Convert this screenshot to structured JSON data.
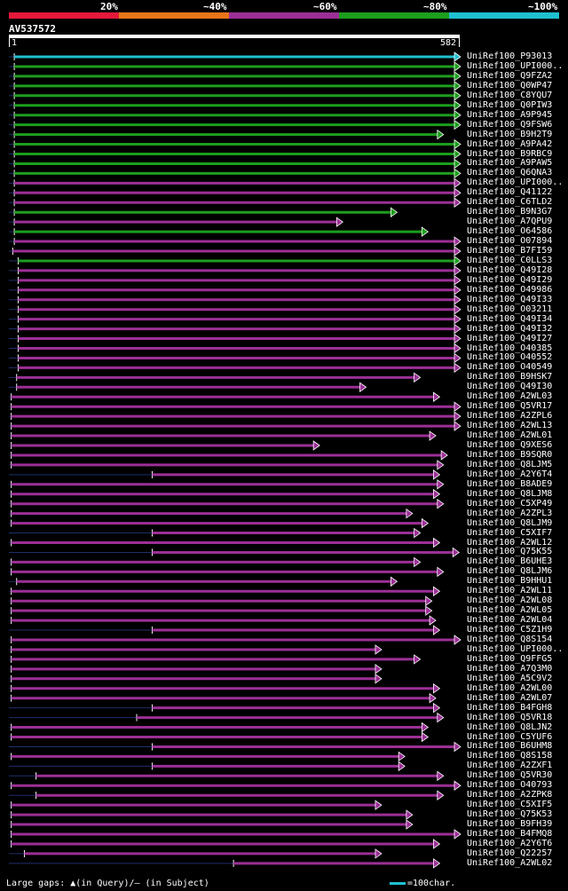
{
  "legend": {
    "labels": [
      "20%",
      "~40%",
      "~60%",
      "~80%",
      "~100%"
    ],
    "colors": [
      "#e5193a",
      "#e8751a",
      "#9c2f96",
      "#1d9e1e",
      "#1fc0d0"
    ]
  },
  "query": {
    "id": "AV537572",
    "start": "1",
    "end": "582",
    "length": 582
  },
  "hits": [
    {
      "label": "UniRef100_P93013",
      "color": "teal",
      "qs": 7,
      "qe": 582
    },
    {
      "label": "UniRef100_UPI000..",
      "color": "green",
      "qs": 7,
      "qe": 582
    },
    {
      "label": "UniRef100_Q9FZA2",
      "color": "green",
      "qs": 7,
      "qe": 582
    },
    {
      "label": "UniRef100_Q0WP47",
      "color": "green",
      "qs": 7,
      "qe": 582
    },
    {
      "label": "UniRef100_C8YQU7",
      "color": "green",
      "qs": 7,
      "qe": 582
    },
    {
      "label": "UniRef100_Q0PIW3",
      "color": "green",
      "qs": 7,
      "qe": 582
    },
    {
      "label": "UniRef100_A9P945",
      "color": "green",
      "qs": 7,
      "qe": 582
    },
    {
      "label": "UniRef100_Q9FSW6",
      "color": "green",
      "qs": 7,
      "qe": 582
    },
    {
      "label": "UniRef100_B9H2T9",
      "color": "green",
      "qs": 7,
      "qe": 560
    },
    {
      "label": "UniRef100_A9PA42",
      "color": "green",
      "qs": 7,
      "qe": 582
    },
    {
      "label": "UniRef100_B9RBC9",
      "color": "green",
      "qs": 7,
      "qe": 582
    },
    {
      "label": "UniRef100_A9PAW5",
      "color": "green",
      "qs": 7,
      "qe": 582
    },
    {
      "label": "UniRef100_Q6QNA3",
      "color": "green",
      "qs": 7,
      "qe": 582
    },
    {
      "label": "UniRef100_UPI000..",
      "color": "purple",
      "qs": 7,
      "qe": 582
    },
    {
      "label": "UniRef100_Q41122",
      "color": "purple",
      "qs": 7,
      "qe": 582
    },
    {
      "label": "UniRef100_C6TLD2",
      "color": "purple",
      "qs": 7,
      "qe": 582
    },
    {
      "label": "UniRef100_B9N3G7",
      "color": "green",
      "qs": 7,
      "qe": 500
    },
    {
      "label": "UniRef100_A7QPU9",
      "color": "purple",
      "qs": 7,
      "qe": 430
    },
    {
      "label": "UniRef100_O64586",
      "color": "green",
      "qs": 7,
      "qe": 540
    },
    {
      "label": "UniRef100_O07894",
      "color": "purple",
      "qs": 7,
      "qe": 582
    },
    {
      "label": "UniRef100_B7FI59",
      "color": "purple",
      "qs": 5,
      "qe": 582
    },
    {
      "label": "UniRef100_C0LLS3",
      "color": "green",
      "qs": 12,
      "qe": 582
    },
    {
      "label": "UniRef100_Q49I28",
      "color": "purple",
      "qs": 12,
      "qe": 582
    },
    {
      "label": "UniRef100_Q49I29",
      "color": "purple",
      "qs": 12,
      "qe": 582
    },
    {
      "label": "UniRef100_O49986",
      "color": "purple",
      "qs": 12,
      "qe": 582
    },
    {
      "label": "UniRef100_Q49I33",
      "color": "purple",
      "qs": 12,
      "qe": 582
    },
    {
      "label": "UniRef100_O03211",
      "color": "purple",
      "qs": 12,
      "qe": 582
    },
    {
      "label": "UniRef100_Q49I34",
      "color": "purple",
      "qs": 12,
      "qe": 582
    },
    {
      "label": "UniRef100_Q49I32",
      "color": "purple",
      "qs": 12,
      "qe": 582
    },
    {
      "label": "UniRef100_Q49I27",
      "color": "purple",
      "qs": 12,
      "qe": 582
    },
    {
      "label": "UniRef100_O40385",
      "color": "purple",
      "qs": 12,
      "qe": 582
    },
    {
      "label": "UniRef100_O40552",
      "color": "purple",
      "qs": 12,
      "qe": 582
    },
    {
      "label": "UniRef100_O40549",
      "color": "purple",
      "qs": 12,
      "qe": 582
    },
    {
      "label": "UniRef100_B9HSK7",
      "color": "purple",
      "qs": 10,
      "qe": 530
    },
    {
      "label": "UniRef100_Q49I30",
      "color": "purple",
      "qs": 10,
      "qe": 460
    },
    {
      "label": "UniRef100_A2WL03",
      "color": "purple",
      "qs": 3,
      "qe": 555
    },
    {
      "label": "UniRef100_Q5VR17",
      "color": "purple",
      "qs": 3,
      "qe": 582
    },
    {
      "label": "UniRef100_A2ZPL6",
      "color": "purple",
      "qs": 3,
      "qe": 582
    },
    {
      "label": "UniRef100_A2WL13",
      "color": "purple",
      "qs": 3,
      "qe": 582
    },
    {
      "label": "UniRef100_A2WL01",
      "color": "purple",
      "qs": 3,
      "qe": 550
    },
    {
      "label": "UniRef100_Q9XES6",
      "color": "purple",
      "qs": 3,
      "qe": 400
    },
    {
      "label": "UniRef100_B9SQR0",
      "color": "purple",
      "qs": 3,
      "qe": 565
    },
    {
      "label": "UniRef100_Q8LJM5",
      "color": "purple",
      "qs": 3,
      "qe": 560
    },
    {
      "label": "UniRef100_A2Y6T4",
      "color": "purple",
      "qs": 185,
      "qe": 555
    },
    {
      "label": "UniRef100_B8ADE9",
      "color": "purple",
      "qs": 3,
      "qe": 560
    },
    {
      "label": "UniRef100_Q8LJM8",
      "color": "purple",
      "qs": 3,
      "qe": 555
    },
    {
      "label": "UniRef100_C5XP49",
      "color": "purple",
      "qs": 3,
      "qe": 560
    },
    {
      "label": "UniRef100_A2ZPL3",
      "color": "purple",
      "qs": 3,
      "qe": 520
    },
    {
      "label": "UniRef100_Q8LJM9",
      "color": "purple",
      "qs": 3,
      "qe": 540
    },
    {
      "label": "UniRef100_C5XIF7",
      "color": "purple",
      "qs": 185,
      "qe": 530
    },
    {
      "label": "UniRef100_A2WL12",
      "color": "purple",
      "qs": 3,
      "qe": 555
    },
    {
      "label": "UniRef100_Q75K55",
      "color": "purple",
      "qs": 185,
      "qe": 580
    },
    {
      "label": "UniRef100_B6UHE3",
      "color": "purple",
      "qs": 3,
      "qe": 530
    },
    {
      "label": "UniRef100_Q8LJM6",
      "color": "purple",
      "qs": 3,
      "qe": 560
    },
    {
      "label": "UniRef100_B9HHU1",
      "color": "purple",
      "qs": 10,
      "qe": 500
    },
    {
      "label": "UniRef100_A2WL11",
      "color": "purple",
      "qs": 3,
      "qe": 555
    },
    {
      "label": "UniRef100_A2WL08",
      "color": "purple",
      "qs": 3,
      "qe": 545
    },
    {
      "label": "UniRef100_A2WL05",
      "color": "purple",
      "qs": 3,
      "qe": 545
    },
    {
      "label": "UniRef100_A2WL04",
      "color": "purple",
      "qs": 3,
      "qe": 550
    },
    {
      "label": "UniRef100_C5Z1H9",
      "color": "purple",
      "qs": 185,
      "qe": 555
    },
    {
      "label": "UniRef100_Q8S154",
      "color": "purple",
      "qs": 3,
      "qe": 582
    },
    {
      "label": "UniRef100_UPI000..",
      "color": "purple",
      "qs": 3,
      "qe": 480
    },
    {
      "label": "UniRef100_Q9FFG5",
      "color": "purple",
      "qs": 3,
      "qe": 530
    },
    {
      "label": "UniRef100_A7Q3M0",
      "color": "purple",
      "qs": 3,
      "qe": 480
    },
    {
      "label": "UniRef100_A5C9V2",
      "color": "purple",
      "qs": 3,
      "qe": 480
    },
    {
      "label": "UniRef100_A2WL00",
      "color": "purple",
      "qs": 3,
      "qe": 555
    },
    {
      "label": "UniRef100_A2WL07",
      "color": "purple",
      "qs": 3,
      "qe": 550
    },
    {
      "label": "UniRef100_B4FGH8",
      "color": "purple",
      "qs": 185,
      "qe": 555
    },
    {
      "label": "UniRef100_Q5VR18",
      "color": "purple",
      "qs": 165,
      "qe": 560
    },
    {
      "label": "UniRef100_Q8LJN2",
      "color": "purple",
      "qs": 3,
      "qe": 540
    },
    {
      "label": "UniRef100_C5YUF6",
      "color": "purple",
      "qs": 3,
      "qe": 540
    },
    {
      "label": "UniRef100_B6UHM8",
      "color": "purple",
      "qs": 185,
      "qe": 582
    },
    {
      "label": "UniRef100_Q8S158",
      "color": "purple",
      "qs": 3,
      "qe": 510
    },
    {
      "label": "UniRef100_A2ZXF1",
      "color": "purple",
      "qs": 185,
      "qe": 510
    },
    {
      "label": "UniRef100_Q5VR30",
      "color": "purple",
      "qs": 35,
      "qe": 560
    },
    {
      "label": "UniRef100_O40793",
      "color": "purple",
      "qs": 3,
      "qe": 582
    },
    {
      "label": "UniRef100_A2ZPK8",
      "color": "purple",
      "qs": 35,
      "qe": 560
    },
    {
      "label": "UniRef100_C5XIF5",
      "color": "purple",
      "qs": 3,
      "qe": 480
    },
    {
      "label": "UniRef100_Q75K53",
      "color": "purple",
      "qs": 3,
      "qe": 520
    },
    {
      "label": "UniRef100_B9FH39",
      "color": "purple",
      "qs": 3,
      "qe": 520
    },
    {
      "label": "UniRef100_B4FMQ8",
      "color": "purple",
      "qs": 3,
      "qe": 582
    },
    {
      "label": "UniRef100_A2Y6T6",
      "color": "purple",
      "qs": 3,
      "qe": 555
    },
    {
      "label": "UniRef100_Q22257",
      "color": "purple",
      "qs": 20,
      "qe": 480
    },
    {
      "label": "UniRef100_A2WL02",
      "color": "purple",
      "qs": 290,
      "qe": 555
    }
  ],
  "footer": {
    "gap_note": "Large gaps: ▲(in Query)/— (in Subject)",
    "scale_note": "=100char."
  }
}
